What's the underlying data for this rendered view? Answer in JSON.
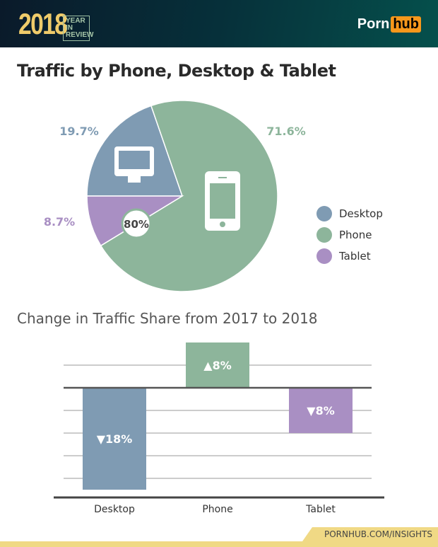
{
  "header": {
    "year": "2018",
    "badge_line1": "YEAR IN",
    "badge_line2": "REVIEW",
    "logo_left": "Porn",
    "logo_right": "hub"
  },
  "title": "Traffic by Phone, Desktop & Tablet",
  "footer": "PORNHUB.COM/INSIGHTS",
  "chart_data": [
    {
      "type": "pie",
      "slices": [
        {
          "name": "Desktop",
          "value": 19.7,
          "label": "19.7%",
          "color": "#7f9bb3",
          "icon": "desktop-monitor-icon"
        },
        {
          "name": "Phone",
          "value": 71.6,
          "label": "71.6%",
          "color": "#8db59b",
          "icon": "smartphone-icon"
        },
        {
          "name": "Tablet",
          "value": 8.7,
          "label": "8.7%",
          "color": "#a98fc3"
        }
      ],
      "annotation": "80%",
      "legend": "right"
    },
    {
      "type": "bar",
      "title": "Change in Traffic Share from 2017 to 2018",
      "categories": [
        "Desktop",
        "Phone",
        "Tablet"
      ],
      "values": [
        -18,
        8,
        -8
      ],
      "labels": [
        "▼18%",
        "▲8%",
        "▼8%"
      ],
      "colors": [
        "#7f9bb3",
        "#8db59b",
        "#a98fc3"
      ],
      "grid": true,
      "ylim": [
        -19.25,
        8
      ]
    }
  ]
}
